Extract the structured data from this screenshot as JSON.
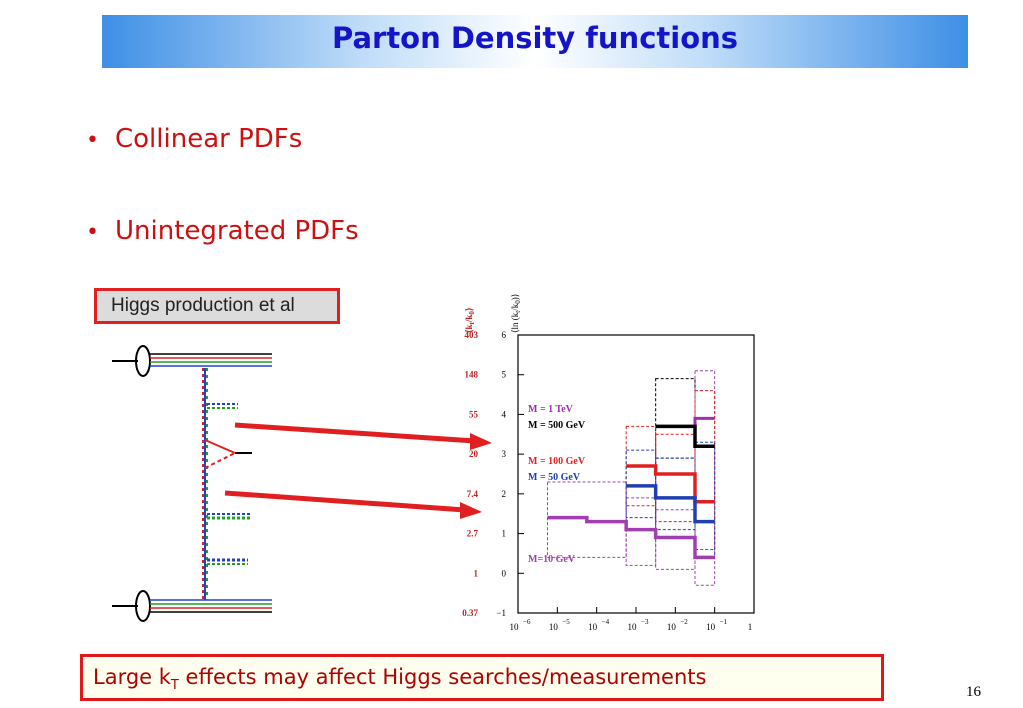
{
  "slide": {
    "title": "Parton Density functions",
    "bullets": [
      "Collinear PDFs",
      "Unintegrated PDFs"
    ],
    "higgs_label": "Higgs production et al",
    "bottom_text_pre": "Large k",
    "bottom_text_sub": "T",
    "bottom_text_post": " effects may affect Higgs searches/measurements",
    "page_number": "16"
  },
  "chart_data": {
    "type": "line",
    "left_axis_label": "⟨k",
    "left_axis_label_sub": "t",
    "left_axis_label_mid": "/k",
    "left_axis_label_sub2": "0",
    "left_axis_label_end": "⟩",
    "right_axis_label": "⟨ln (k",
    "right_axis_label_sub": "t",
    "right_axis_label_mid": "/k",
    "right_axis_label_sub2": "0",
    "right_axis_label_end": ")⟩",
    "left_ticks": [
      "403",
      "148",
      "55",
      "20",
      "7.4",
      "2.7",
      "1",
      "0.37"
    ],
    "y_ticks": [
      "6",
      "5",
      "4",
      "3",
      "2",
      "1",
      "0",
      "−1"
    ],
    "ylim": [
      -1,
      6
    ],
    "x_ticks": [
      "10",
      "10",
      "10",
      "10",
      "10",
      "10",
      "1"
    ],
    "x_tick_exps": [
      "−6",
      "−5",
      "−4",
      "−3",
      "−2",
      "−1",
      ""
    ],
    "series": [
      {
        "name": "M = 1 TeV",
        "color": "#9b30b0",
        "style": "solid-thin",
        "steps": [
          [
            -2.5,
            -1.5,
            3.7
          ],
          [
            -1.5,
            -1,
            3.9
          ]
        ]
      },
      {
        "name": "M = 500 GeV",
        "color": "#000000",
        "style": "solid",
        "steps": [
          [
            -2.5,
            -1.5,
            3.7
          ],
          [
            -1.5,
            -1,
            3.2
          ]
        ]
      },
      {
        "name": "M = 100 GeV",
        "color": "#e02020",
        "style": "solid",
        "steps": [
          [
            -3.25,
            -2.5,
            2.7
          ],
          [
            -2.5,
            -1.5,
            2.5
          ],
          [
            -1.5,
            -1,
            1.8
          ]
        ]
      },
      {
        "name": "M = 50 GeV",
        "color": "#2040b0",
        "style": "solid",
        "steps": [
          [
            -3.25,
            -2.5,
            2.2
          ],
          [
            -2.5,
            -1.5,
            1.9
          ],
          [
            -1.5,
            -1,
            1.3
          ]
        ]
      },
      {
        "name": "M=10 GeV",
        "color": "#a040b0",
        "style": "solid",
        "steps": [
          [
            -5.25,
            -4.25,
            1.4
          ],
          [
            -4.25,
            -3.25,
            1.3
          ],
          [
            -3.25,
            -2.5,
            1.1
          ],
          [
            -2.5,
            -1.5,
            0.9
          ],
          [
            -1.5,
            -1,
            0.4
          ]
        ]
      }
    ]
  }
}
